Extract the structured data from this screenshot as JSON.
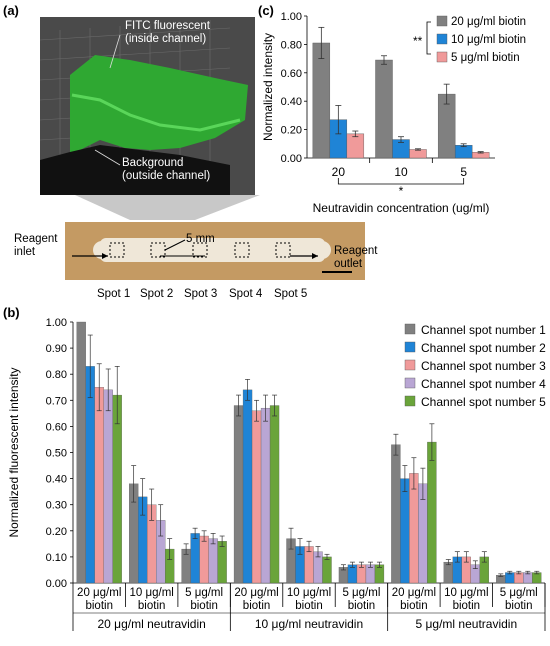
{
  "panel_labels": {
    "a": "(a)",
    "b": "(b)",
    "c": "(c)"
  },
  "panel_a": {
    "fluor_label_line1": "FITC fluorescent",
    "fluor_label_line2": "(inside channel)",
    "bg_label_line1": "Background",
    "bg_label_line2": "(outside channel)",
    "inlet_line1": "Reagent",
    "inlet_line2": "inlet",
    "outlet_line1": "Reagent",
    "outlet_line2": "outlet",
    "scale": "5 mm",
    "spots": [
      "Spot 1",
      "Spot 2",
      "Spot 3",
      "Spot 4",
      "Spot 5"
    ]
  },
  "colors": {
    "s1": "#808080",
    "s2": "#1f84d6",
    "s3": "#f09a9a",
    "s4": "#b9a6d4",
    "s5": "#6aa43a",
    "surface": "#2fa832",
    "chip": "#c49a63"
  },
  "chart_data": [
    {
      "id": "c",
      "type": "bar",
      "ylabel": "Normalized intensity",
      "xlabel": "Neutravidin concentration (ug/ml)",
      "categories": [
        "20",
        "10",
        "5"
      ],
      "ylim": [
        0,
        1.0
      ],
      "yticks": [
        "0.00",
        "0.20",
        "0.40",
        "0.60",
        "0.80",
        "1.00"
      ],
      "significance": {
        "legend_mark": "**",
        "axis_mark": "*"
      },
      "legend_position": "top-right",
      "series": [
        {
          "name": "20 μg/ml biotin",
          "color": "#808080",
          "values": [
            0.81,
            0.69,
            0.45
          ],
          "errors": [
            0.11,
            0.03,
            0.07
          ]
        },
        {
          "name": "10 μg/ml biotin",
          "color": "#1f84d6",
          "values": [
            0.27,
            0.13,
            0.09
          ],
          "errors": [
            0.1,
            0.02,
            0.01
          ]
        },
        {
          "name": "5 μg/ml biotin",
          "color": "#f09a9a",
          "values": [
            0.17,
            0.06,
            0.04
          ],
          "errors": [
            0.02,
            0.005,
            0.005
          ]
        }
      ]
    },
    {
      "id": "b",
      "type": "bar",
      "ylabel": "Normalized fluorescent intensity",
      "ylim": [
        0,
        1.0
      ],
      "yticks": [
        "0.00",
        "0.10",
        "0.20",
        "0.30",
        "0.40",
        "0.50",
        "0.60",
        "0.70",
        "0.80",
        "0.90",
        "1.00"
      ],
      "categories": [
        [
          "20 μg/ml",
          "biotin"
        ],
        [
          "10 μg/ml",
          "biotin"
        ],
        [
          "5 μg/ml",
          "biotin"
        ],
        [
          "20 μg/ml",
          "biotin"
        ],
        [
          "10 μg/ml",
          "biotin"
        ],
        [
          "5 μg/ml",
          "biotin"
        ],
        [
          "20 μg/ml",
          "biotin"
        ],
        [
          "10 μg/ml",
          "biotin"
        ],
        [
          "5 μg/ml",
          "biotin"
        ]
      ],
      "groups": [
        "20 μg/ml neutravidin",
        "10 μg/ml neutravidin",
        "5 μg/ml neutravidin"
      ],
      "legend_position": "top-right",
      "series": [
        {
          "name": "Channel spot number 1",
          "color": "#808080",
          "values": [
            1.0,
            0.38,
            0.13,
            0.68,
            0.17,
            0.06,
            0.53,
            0.08,
            0.03
          ],
          "errors": [
            0.0,
            0.07,
            0.02,
            0.04,
            0.04,
            0.01,
            0.04,
            0.01,
            0.005
          ]
        },
        {
          "name": "Channel spot number 2",
          "color": "#1f84d6",
          "values": [
            0.83,
            0.33,
            0.19,
            0.74,
            0.14,
            0.07,
            0.4,
            0.1,
            0.04
          ],
          "errors": [
            0.12,
            0.07,
            0.02,
            0.04,
            0.03,
            0.01,
            0.05,
            0.02,
            0.005
          ]
        },
        {
          "name": "Channel spot number 3",
          "color": "#f09a9a",
          "values": [
            0.75,
            0.3,
            0.18,
            0.66,
            0.14,
            0.07,
            0.42,
            0.1,
            0.04
          ],
          "errors": [
            0.09,
            0.06,
            0.02,
            0.04,
            0.02,
            0.01,
            0.06,
            0.02,
            0.005
          ]
        },
        {
          "name": "Channel spot number 4",
          "color": "#b9a6d4",
          "values": [
            0.74,
            0.24,
            0.17,
            0.67,
            0.12,
            0.07,
            0.38,
            0.07,
            0.04
          ],
          "errors": [
            0.08,
            0.06,
            0.02,
            0.05,
            0.02,
            0.01,
            0.06,
            0.015,
            0.005
          ]
        },
        {
          "name": "Channel spot number 5",
          "color": "#6aa43a",
          "values": [
            0.72,
            0.13,
            0.16,
            0.68,
            0.1,
            0.07,
            0.54,
            0.1,
            0.04
          ],
          "errors": [
            0.11,
            0.04,
            0.02,
            0.04,
            0.01,
            0.01,
            0.07,
            0.02,
            0.005
          ]
        }
      ]
    }
  ]
}
